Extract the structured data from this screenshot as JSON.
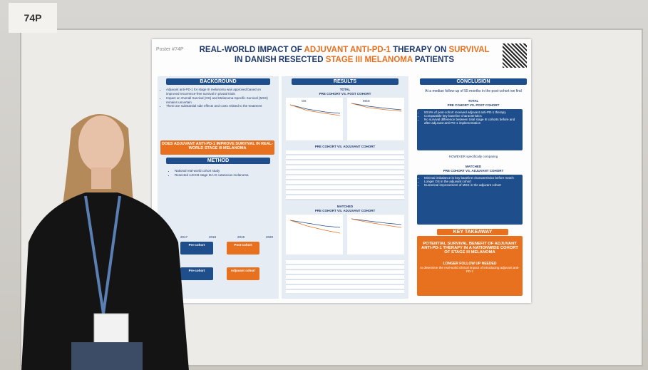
{
  "board_label": "74P",
  "poster": {
    "number": "Poster #74P",
    "title": [
      {
        "text": "REAL-WORLD IMPACT OF ",
        "color": "#1f3a6e"
      },
      {
        "text": "ADJUVANT ANTI-PD-1",
        "color": "#e8711f"
      },
      {
        "text": " THERAPY ON ",
        "color": "#1f3a6e"
      },
      {
        "text": "SURVIVAL",
        "color": "#e8711f"
      },
      {
        "text": " IN DANISH RESECTED ",
        "color": "#1f3a6e"
      },
      {
        "text": "STAGE III MELANOMA",
        "color": "#e8711f"
      },
      {
        "text": " PATIENTS",
        "color": "#1f3a6e"
      }
    ],
    "background": {
      "heading": "BACKGROUND",
      "bullets": [
        "Adjuvant anti-PD-1 for stage III melanoma was approved based on improved recurrence-free survival in pivotal trials",
        "Impact on Overall Survival (OS) and Melanoma-Specific Survival (MSS) remains uncertain",
        "There are substantial side effects and costs related to the treatment"
      ]
    },
    "question": "DOES ADJUVANT ANTI-PD-1 IMPROVE SURVIVAL IN REAL-WORLD STAGE III MELANOMA",
    "method": {
      "heading": "METHOD",
      "items": [
        "National real-world cohort study",
        "Resected AJCC8 stage IIIA-D cutaneous melanoma"
      ],
      "years": [
        "2017",
        "2018",
        "2019",
        "2020"
      ],
      "boxes": [
        "Pre-cohort",
        "Post-cohort",
        "Pre-cohort",
        "Adjuvant cohort"
      ]
    },
    "results": {
      "heading": "RESULTS",
      "total": "TOTAL",
      "total_comparison": "PRE COHORT VS. POST COHORT",
      "os": "OS",
      "mss": "MSS",
      "table_title": "PRE COHORT VS. ADJUVANT COHORT",
      "matched": "MATCHED",
      "matched_comparison": "PRE COHORT VS. ADJUVANT COHORT"
    },
    "conclusion": {
      "heading": "CONCLUSION",
      "intro": "At a median follow-up of 55 months in the post-cohort we find",
      "total": "TOTAL",
      "total_comparison": "PRE COHORT VS. POST COHORT",
      "total_points": [
        "53.8% of post-cohort received adjuvant anti-PD-1 therapy",
        "Comparable key baseline characteristics",
        "No survival difference between total stage III cohorts before and after adjuvant anti-PD-1 implementation"
      ],
      "however": "HOWEVER specifically comparing",
      "matched": "MATCHED",
      "matched_comparison": "PRE COHORT VS. ADJUVANT COHORT",
      "matched_points": [
        "Minimal imbalance in key baseline characteristics before match",
        "Longer OS in the adjuvant cohort",
        "Numerical improvement of MSS in the adjuvant cohort"
      ]
    },
    "key_takeaway": {
      "heading": "KEY TAKEAWAY",
      "statement": "POTENTIAL SURVIVAL BENEFIT OF ADJUVANT ANTI-PD-1 THERAPY IN A NATIONWIDE COHORT OF STAGE III MELANOMA",
      "follow_up": "LONGER FOLLOW UP NEEDED",
      "note": "to determine the real-world clinical impact of introducing adjuvant anti-PD-1"
    }
  }
}
